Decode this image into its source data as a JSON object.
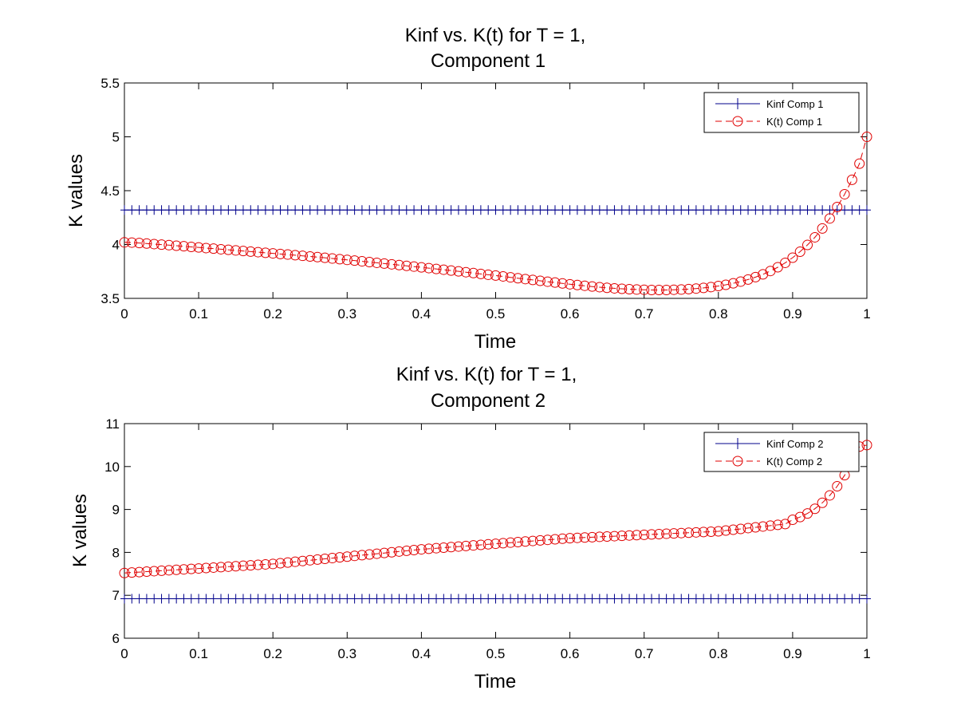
{
  "colors": {
    "kinf": "#00008b",
    "kt": "#e00000",
    "axes": "#000000",
    "background": "#ffffff"
  },
  "chart_data": [
    {
      "type": "line",
      "title_line1": "Kinf vs. K(t) for T = 1,",
      "title_line2": "Component 1",
      "xlabel": "Time",
      "ylabel": "K values",
      "xlim": [
        0,
        1
      ],
      "ylim": [
        3.5,
        5.5
      ],
      "xticks": [
        "0",
        "0.1",
        "0.2",
        "0.3",
        "0.4",
        "0.5",
        "0.6",
        "0.7",
        "0.8",
        "0.9",
        "1"
      ],
      "yticks": [
        "3.5",
        "4",
        "4.5",
        "5",
        "5.5"
      ],
      "grid": false,
      "legend_position": "top-right",
      "x_start": 0,
      "x_step": 0.01,
      "series": [
        {
          "name": "Kinf Comp 1",
          "marker": "plus",
          "line": "solid",
          "constant": 4.32
        },
        {
          "name": "K(t) Comp 1",
          "marker": "circle",
          "line": "dashed",
          "values": [
            4.02,
            4.018,
            4.014,
            4.009,
            4.004,
            3.999,
            3.994,
            3.989,
            3.984,
            3.978,
            3.973,
            3.967,
            3.962,
            3.956,
            3.951,
            3.945,
            3.94,
            3.934,
            3.929,
            3.923,
            3.918,
            3.912,
            3.907,
            3.901,
            3.895,
            3.889,
            3.883,
            3.877,
            3.87,
            3.864,
            3.857,
            3.851,
            3.844,
            3.837,
            3.83,
            3.823,
            3.816,
            3.809,
            3.802,
            3.795,
            3.788,
            3.781,
            3.773,
            3.766,
            3.758,
            3.751,
            3.743,
            3.735,
            3.727,
            3.719,
            3.712,
            3.704,
            3.695,
            3.687,
            3.679,
            3.671,
            3.663,
            3.655,
            3.647,
            3.639,
            3.631,
            3.624,
            3.617,
            3.61,
            3.604,
            3.598,
            3.593,
            3.589,
            3.585,
            3.582,
            3.58,
            3.578,
            3.578,
            3.578,
            3.58,
            3.582,
            3.586,
            3.591,
            3.597,
            3.605,
            3.615,
            3.626,
            3.64,
            3.656,
            3.675,
            3.697,
            3.723,
            3.754,
            3.789,
            3.83,
            3.878,
            3.933,
            3.996,
            4.067,
            4.149,
            4.242,
            4.348,
            4.467,
            4.601,
            4.751,
            5.0
          ]
        }
      ]
    },
    {
      "type": "line",
      "title_line1": "Kinf vs. K(t) for T = 1,",
      "title_line2": "Component 2",
      "xlabel": "Time",
      "ylabel": "K values",
      "xlim": [
        0,
        1
      ],
      "ylim": [
        6,
        11
      ],
      "xticks": [
        "0",
        "0.1",
        "0.2",
        "0.3",
        "0.4",
        "0.5",
        "0.6",
        "0.7",
        "0.8",
        "0.9",
        "1"
      ],
      "yticks": [
        "6",
        "7",
        "8",
        "9",
        "10",
        "11"
      ],
      "grid": false,
      "legend_position": "top-right",
      "x_start": 0,
      "x_step": 0.01,
      "series": [
        {
          "name": "Kinf Comp 2",
          "marker": "plus",
          "line": "solid",
          "constant": 6.92
        },
        {
          "name": "K(t) Comp 2",
          "marker": "circle",
          "line": "dashed",
          "values": [
            7.52,
            7.531,
            7.541,
            7.552,
            7.562,
            7.573,
            7.583,
            7.594,
            7.604,
            7.615,
            7.625,
            7.636,
            7.646,
            7.657,
            7.667,
            7.678,
            7.688,
            7.699,
            7.709,
            7.72,
            7.73,
            7.747,
            7.764,
            7.781,
            7.799,
            7.816,
            7.833,
            7.85,
            7.867,
            7.884,
            7.901,
            7.918,
            7.935,
            7.952,
            7.969,
            7.986,
            8.003,
            8.02,
            8.037,
            8.054,
            8.071,
            8.084,
            8.097,
            8.11,
            8.123,
            8.136,
            8.149,
            8.162,
            8.175,
            8.188,
            8.201,
            8.214,
            8.227,
            8.24,
            8.253,
            8.266,
            8.279,
            8.292,
            8.305,
            8.318,
            8.33,
            8.338,
            8.346,
            8.354,
            8.362,
            8.37,
            8.378,
            8.386,
            8.394,
            8.402,
            8.41,
            8.418,
            8.426,
            8.434,
            8.442,
            8.45,
            8.458,
            8.466,
            8.474,
            8.482,
            8.49,
            8.509,
            8.528,
            8.547,
            8.566,
            8.584,
            8.603,
            8.622,
            8.641,
            8.66,
            8.76,
            8.823,
            8.907,
            9.016,
            9.155,
            9.328,
            9.541,
            9.798,
            10.104,
            10.465,
            10.5
          ]
        }
      ]
    }
  ]
}
